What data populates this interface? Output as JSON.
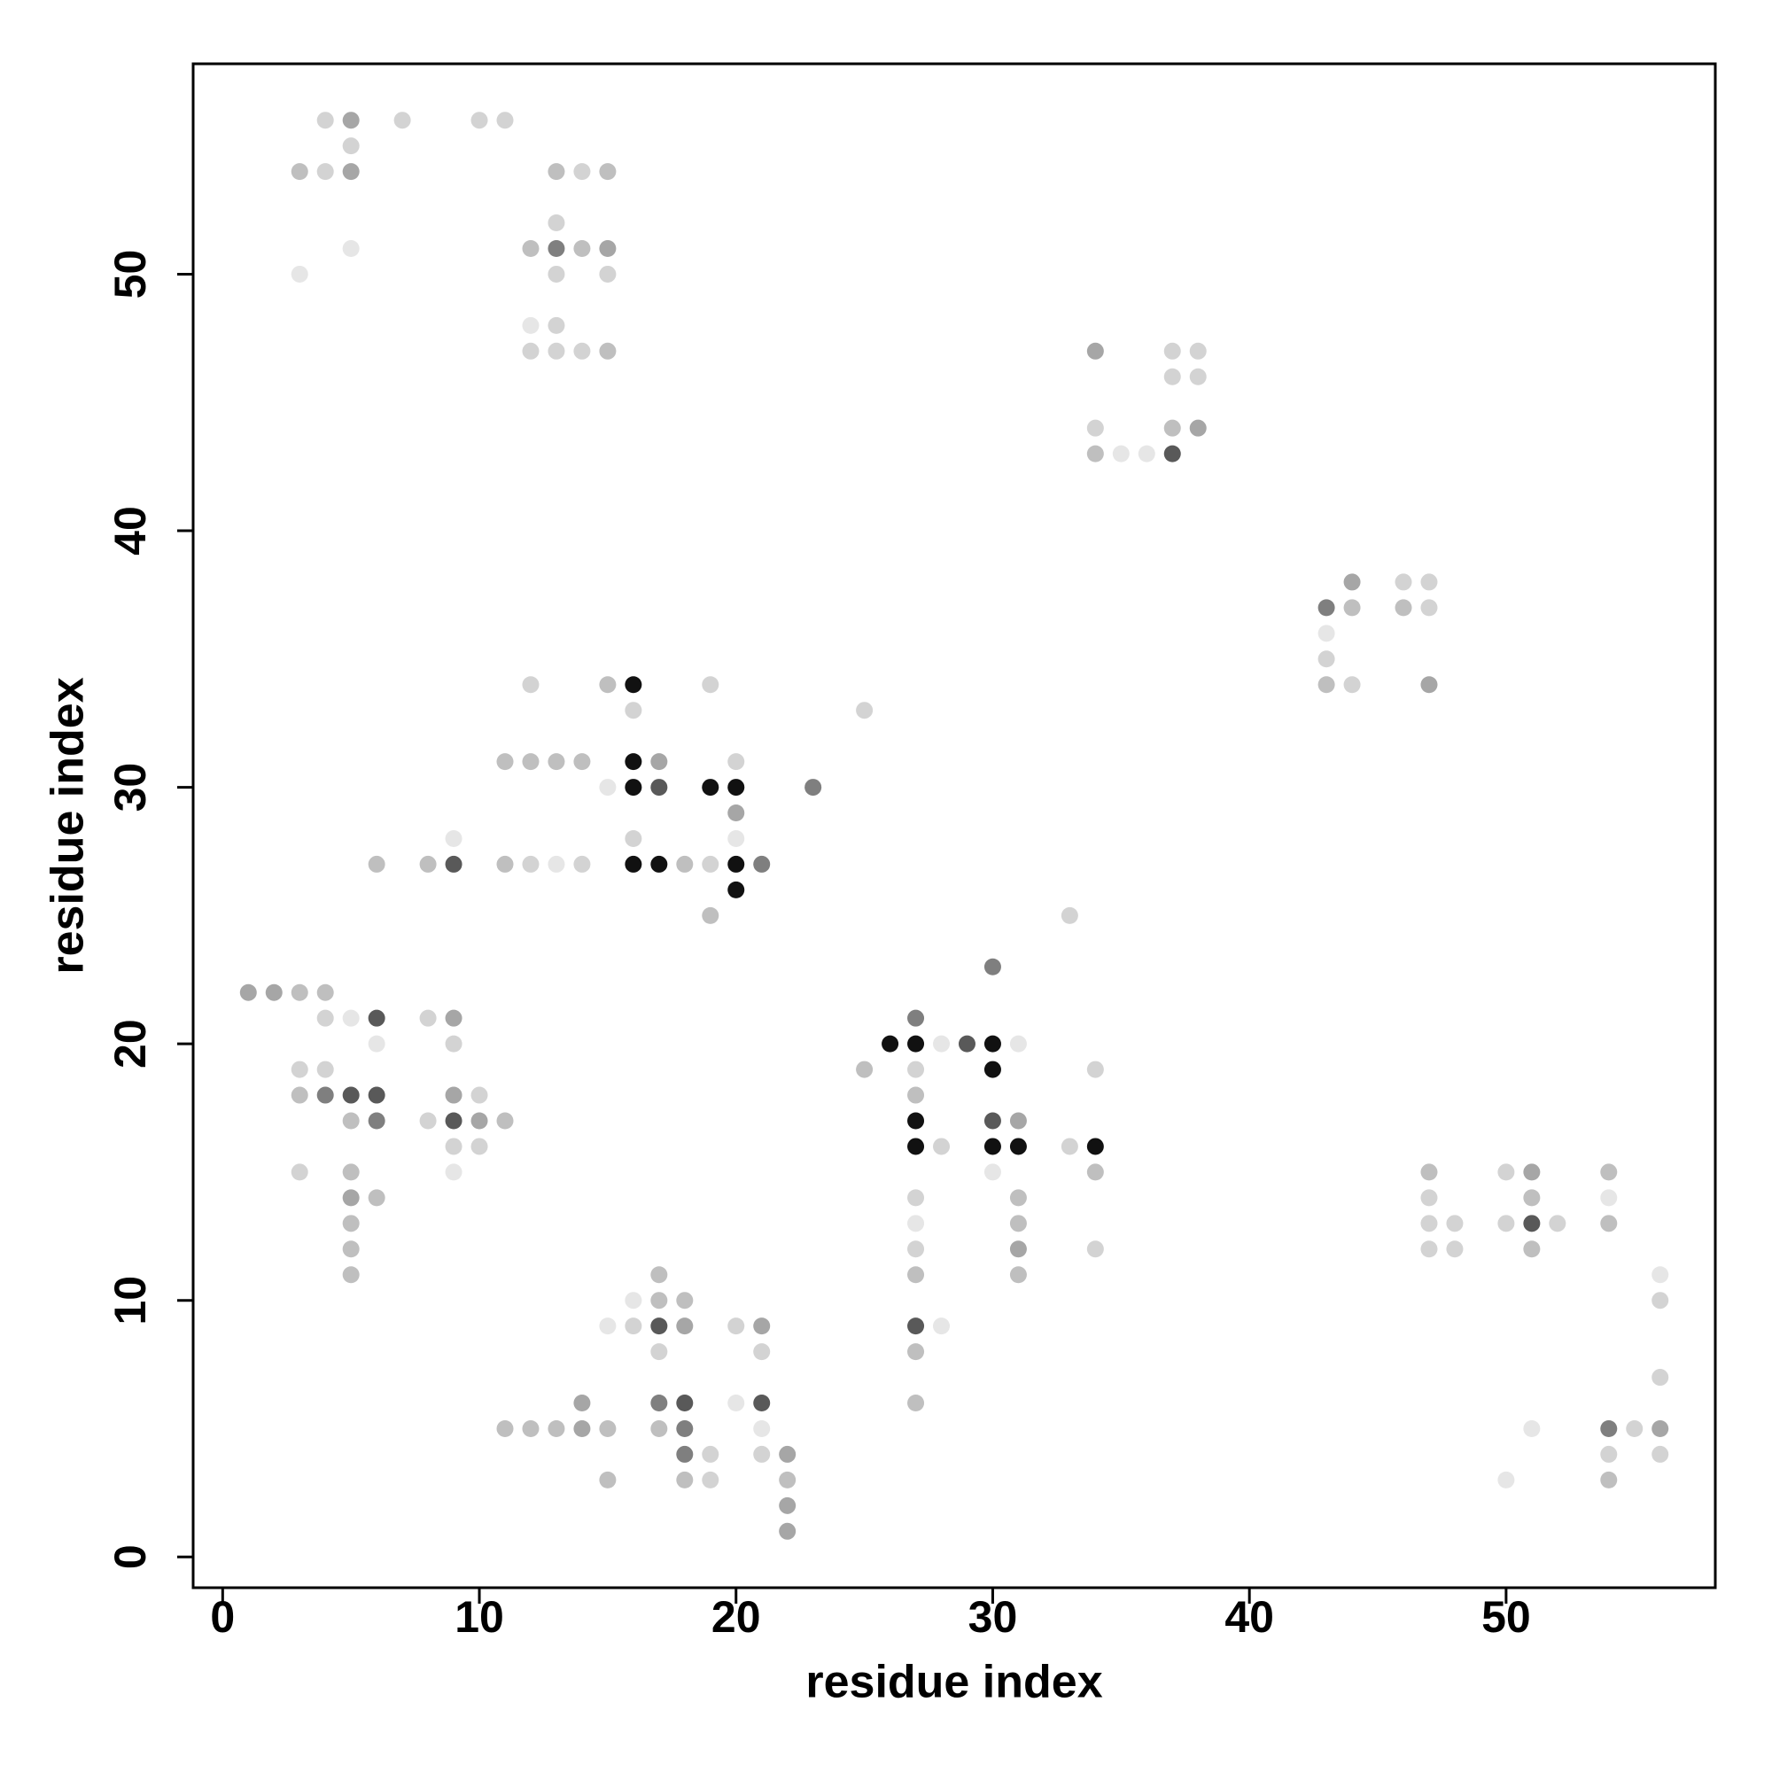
{
  "chart_data": {
    "type": "scatter",
    "x_label": "residue index",
    "y_label": "residue index",
    "xlim": [
      -1.15,
      58.15
    ],
    "ylim": [
      -1.2,
      58.2
    ],
    "xticks": [
      0,
      10,
      20,
      30,
      40,
      50
    ],
    "yticks": [
      0,
      10,
      20,
      30,
      40,
      50
    ],
    "x": [
      4,
      5,
      7,
      10,
      11,
      5,
      3,
      4,
      5,
      13,
      14,
      15,
      13,
      5,
      12,
      13,
      14,
      15,
      3,
      13,
      15,
      12,
      13,
      12,
      13,
      14,
      15,
      34,
      37,
      38,
      37,
      38,
      34,
      37,
      38,
      34,
      35,
      36,
      37,
      44,
      46,
      47,
      43,
      44,
      46,
      47,
      43,
      43,
      12,
      15,
      16,
      19,
      43,
      44,
      47,
      16,
      25,
      11,
      12,
      13,
      14,
      16,
      17,
      20,
      15,
      16,
      17,
      19,
      20,
      23,
      20,
      9,
      16,
      20,
      6,
      8,
      9,
      11,
      12,
      13,
      14,
      16,
      17,
      18,
      19,
      20,
      21,
      20,
      19,
      33,
      30,
      1,
      2,
      3,
      4,
      4,
      5,
      6,
      8,
      9,
      27,
      6,
      9,
      26,
      27,
      28,
      29,
      30,
      31,
      3,
      4,
      25,
      27,
      30,
      34,
      3,
      4,
      5,
      6,
      9,
      10,
      27,
      5,
      6,
      8,
      9,
      10,
      11,
      27,
      30,
      31,
      9,
      10,
      27,
      28,
      30,
      31,
      33,
      34,
      3,
      5,
      9,
      30,
      34,
      47,
      50,
      51,
      54,
      5,
      6,
      27,
      31,
      47,
      51,
      54,
      5,
      27,
      31,
      47,
      48,
      50,
      51,
      52,
      54,
      5,
      27,
      31,
      34,
      47,
      48,
      51,
      5,
      17,
      27,
      31,
      56,
      16,
      17,
      18,
      56,
      15,
      16,
      17,
      18,
      20,
      21,
      27,
      28,
      17,
      21,
      27,
      56,
      14,
      17,
      18,
      20,
      21,
      27,
      11,
      12,
      13,
      14,
      15,
      17,
      18,
      21,
      51,
      54,
      55,
      56,
      18,
      19,
      21,
      22,
      54,
      56,
      15,
      18,
      19,
      22,
      50,
      54,
      22,
      22
    ],
    "values": [
      56,
      56,
      56,
      56,
      56,
      55,
      54,
      54,
      54,
      54,
      54,
      54,
      52,
      51,
      51,
      51,
      51,
      51,
      50,
      50,
      50,
      48,
      48,
      47,
      47,
      47,
      47,
      47,
      47,
      47,
      46,
      46,
      44,
      44,
      44,
      43,
      43,
      43,
      43,
      38,
      38,
      38,
      37,
      37,
      37,
      37,
      36,
      35,
      34,
      34,
      34,
      34,
      34,
      34,
      34,
      33,
      33,
      31,
      31,
      31,
      31,
      31,
      31,
      31,
      30,
      30,
      30,
      30,
      30,
      30,
      29,
      28,
      28,
      28,
      27,
      27,
      27,
      27,
      27,
      27,
      27,
      27,
      27,
      27,
      27,
      27,
      27,
      26,
      25,
      25,
      23,
      22,
      22,
      22,
      22,
      21,
      21,
      21,
      21,
      21,
      21,
      20,
      20,
      20,
      20,
      20,
      20,
      20,
      20,
      19,
      19,
      19,
      19,
      19,
      19,
      18,
      18,
      18,
      18,
      18,
      18,
      18,
      17,
      17,
      17,
      17,
      17,
      17,
      17,
      17,
      17,
      16,
      16,
      16,
      16,
      16,
      16,
      16,
      16,
      15,
      15,
      15,
      15,
      15,
      15,
      15,
      15,
      15,
      14,
      14,
      14,
      14,
      14,
      14,
      14,
      13,
      13,
      13,
      13,
      13,
      13,
      13,
      13,
      13,
      12,
      12,
      12,
      12,
      12,
      12,
      12,
      11,
      11,
      11,
      11,
      11,
      10,
      10,
      10,
      10,
      9,
      9,
      9,
      9,
      9,
      9,
      9,
      9,
      8,
      8,
      8,
      7,
      6,
      6,
      6,
      6,
      6,
      6,
      5,
      5,
      5,
      5,
      5,
      5,
      5,
      5,
      5,
      5,
      5,
      5,
      4,
      4,
      4,
      4,
      4,
      4,
      3,
      3,
      3,
      3,
      3,
      3,
      2,
      1
    ],
    "colors": [
      "#d3d3d3",
      "#a6a6a6",
      "#d3d3d3",
      "#d3d3d3",
      "#d3d3d3",
      "#d3d3d3",
      "#bfbfbf",
      "#d3d3d3",
      "#a6a6a6",
      "#bfbfbf",
      "#d3d3d3",
      "#bfbfbf",
      "#d3d3d3",
      "#e6e6e6",
      "#bfbfbf",
      "#7f7f7f",
      "#bfbfbf",
      "#a6a6a6",
      "#e6e6e6",
      "#d3d3d3",
      "#d3d3d3",
      "#e6e6e6",
      "#d3d3d3",
      "#d3d3d3",
      "#d3d3d3",
      "#d3d3d3",
      "#bfbfbf",
      "#a6a6a6",
      "#d3d3d3",
      "#d3d3d3",
      "#d3d3d3",
      "#d3d3d3",
      "#d3d3d3",
      "#bfbfbf",
      "#a6a6a6",
      "#bfbfbf",
      "#e6e6e6",
      "#e6e6e6",
      "#595959",
      "#a6a6a6",
      "#d3d3d3",
      "#d3d3d3",
      "#7f7f7f",
      "#bfbfbf",
      "#bfbfbf",
      "#d3d3d3",
      "#e6e6e6",
      "#d3d3d3",
      "#d3d3d3",
      "#bfbfbf",
      "#111111",
      "#d3d3d3",
      "#bfbfbf",
      "#d3d3d3",
      "#a6a6a6",
      "#d3d3d3",
      "#d3d3d3",
      "#bfbfbf",
      "#bfbfbf",
      "#bfbfbf",
      "#bfbfbf",
      "#111111",
      "#a6a6a6",
      "#d3d3d3",
      "#e6e6e6",
      "#111111",
      "#595959",
      "#111111",
      "#111111",
      "#7f7f7f",
      "#a6a6a6",
      "#e6e6e6",
      "#d3d3d3",
      "#e6e6e6",
      "#bfbfbf",
      "#bfbfbf",
      "#595959",
      "#bfbfbf",
      "#d3d3d3",
      "#e6e6e6",
      "#d3d3d3",
      "#111111",
      "#111111",
      "#bfbfbf",
      "#d3d3d3",
      "#111111",
      "#7f7f7f",
      "#111111",
      "#bfbfbf",
      "#d3d3d3",
      "#7f7f7f",
      "#a6a6a6",
      "#a6a6a6",
      "#bfbfbf",
      "#bfbfbf",
      "#d3d3d3",
      "#e6e6e6",
      "#595959",
      "#d3d3d3",
      "#a6a6a6",
      "#7f7f7f",
      "#e6e6e6",
      "#d3d3d3",
      "#111111",
      "#111111",
      "#e6e6e6",
      "#595959",
      "#111111",
      "#e6e6e6",
      "#d3d3d3",
      "#d3d3d3",
      "#bfbfbf",
      "#d3d3d3",
      "#111111",
      "#d3d3d3",
      "#bfbfbf",
      "#7f7f7f",
      "#595959",
      "#595959",
      "#a6a6a6",
      "#d3d3d3",
      "#bfbfbf",
      "#bfbfbf",
      "#7f7f7f",
      "#d3d3d3",
      "#595959",
      "#a6a6a6",
      "#bfbfbf",
      "#111111",
      "#595959",
      "#a6a6a6",
      "#d3d3d3",
      "#d3d3d3",
      "#111111",
      "#d3d3d3",
      "#111111",
      "#111111",
      "#d3d3d3",
      "#111111",
      "#d3d3d3",
      "#bfbfbf",
      "#e6e6e6",
      "#e6e6e6",
      "#bfbfbf",
      "#bfbfbf",
      "#d3d3d3",
      "#a6a6a6",
      "#bfbfbf",
      "#a6a6a6",
      "#bfbfbf",
      "#d3d3d3",
      "#bfbfbf",
      "#d3d3d3",
      "#bfbfbf",
      "#e6e6e6",
      "#bfbfbf",
      "#e6e6e6",
      "#bfbfbf",
      "#d3d3d3",
      "#d3d3d3",
      "#d3d3d3",
      "#595959",
      "#d3d3d3",
      "#bfbfbf",
      "#bfbfbf",
      "#d3d3d3",
      "#a6a6a6",
      "#d3d3d3",
      "#d3d3d3",
      "#d3d3d3",
      "#bfbfbf",
      "#bfbfbf",
      "#bfbfbf",
      "#bfbfbf",
      "#bfbfbf",
      "#e6e6e6",
      "#e6e6e6",
      "#bfbfbf",
      "#bfbfbf",
      "#d3d3d3",
      "#e6e6e6",
      "#d3d3d3",
      "#595959",
      "#a6a6a6",
      "#d3d3d3",
      "#a6a6a6",
      "#595959",
      "#e6e6e6",
      "#d3d3d3",
      "#d3d3d3",
      "#bfbfbf",
      "#d3d3d3",
      "#a6a6a6",
      "#7f7f7f",
      "#595959",
      "#e6e6e6",
      "#595959",
      "#bfbfbf",
      "#bfbfbf",
      "#bfbfbf",
      "#bfbfbf",
      "#a6a6a6",
      "#bfbfbf",
      "#bfbfbf",
      "#7f7f7f",
      "#e6e6e6",
      "#e6e6e6",
      "#7f7f7f",
      "#d3d3d3",
      "#a6a6a6",
      "#7f7f7f",
      "#d3d3d3",
      "#d3d3d3",
      "#a6a6a6",
      "#d3d3d3",
      "#d3d3d3",
      "#bfbfbf",
      "#bfbfbf",
      "#d3d3d3",
      "#bfbfbf",
      "#e6e6e6",
      "#bfbfbf",
      "#a6a6a6",
      "#a6a6a6"
    ]
  }
}
